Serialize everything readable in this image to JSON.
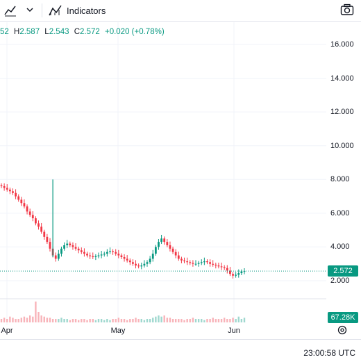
{
  "toolbar": {
    "indicators_label": "Indicators"
  },
  "ohlc": {
    "open_partial": "52",
    "high_key": "H",
    "high_val": "2.587",
    "low_key": "L",
    "low_val": "2.543",
    "close_key": "C",
    "close_val": "2.572",
    "change": "+0.020 (+0.78%)"
  },
  "price_axis": {
    "ticks": [
      "16.000",
      "14.000",
      "12.000",
      "10.000",
      "8.000",
      "6.000",
      "4.000",
      "2.000"
    ],
    "last_price": "2.572",
    "volume_badge": "67.28K"
  },
  "time_axis": {
    "labels": [
      "Apr",
      "May",
      "Jun"
    ]
  },
  "status": {
    "clock": "23:00:58 UTC"
  },
  "colors": {
    "up": "#089981",
    "down": "#f23645",
    "grid": "#f0f3fa"
  },
  "chart_data": {
    "type": "candlestick",
    "ylim": [
      1.5,
      17
    ],
    "close_series": [
      7.6,
      7.5,
      7.4,
      7.3,
      7.2,
      7.0,
      6.8,
      6.6,
      6.4,
      6.1,
      5.9,
      5.7,
      5.4,
      5.2,
      4.9,
      4.6,
      4.3,
      3.9,
      3.5,
      3.3,
      3.6,
      3.9,
      4.1,
      4.2,
      4.1,
      4.0,
      3.9,
      3.8,
      3.7,
      3.6,
      3.5,
      3.45,
      3.4,
      3.45,
      3.5,
      3.55,
      3.6,
      3.7,
      3.75,
      3.7,
      3.6,
      3.5,
      3.4,
      3.3,
      3.2,
      3.1,
      3.0,
      2.9,
      2.85,
      2.9,
      3.0,
      3.1,
      3.3,
      3.6,
      4.0,
      4.3,
      4.5,
      4.3,
      4.1,
      3.9,
      3.7,
      3.5,
      3.3,
      3.2,
      3.15,
      3.1,
      3.05,
      3.0,
      3.0,
      3.05,
      3.1,
      3.15,
      3.1,
      3.0,
      2.95,
      2.9,
      2.85,
      2.8,
      2.75,
      2.6,
      2.4,
      2.3,
      2.35,
      2.45,
      2.55,
      2.572
    ],
    "spike_high": 8.0,
    "volume_series": [
      3,
      4,
      3,
      5,
      4,
      3,
      3,
      4,
      5,
      4,
      6,
      5,
      18,
      9,
      6,
      5,
      4,
      4,
      3,
      3,
      3,
      4,
      3,
      3,
      2,
      3,
      3,
      2,
      3,
      3,
      2,
      3,
      3,
      2,
      3,
      3,
      2,
      3,
      2,
      3,
      3,
      4,
      3,
      3,
      2,
      3,
      3,
      4,
      3,
      3,
      2,
      3,
      3,
      4,
      5,
      6,
      5,
      6,
      4,
      4,
      3,
      3,
      3,
      3,
      2,
      3,
      3,
      4,
      3,
      3,
      3,
      2,
      3,
      3,
      4,
      3,
      3,
      3,
      4,
      3,
      3,
      4,
      3,
      5,
      3,
      4
    ]
  }
}
